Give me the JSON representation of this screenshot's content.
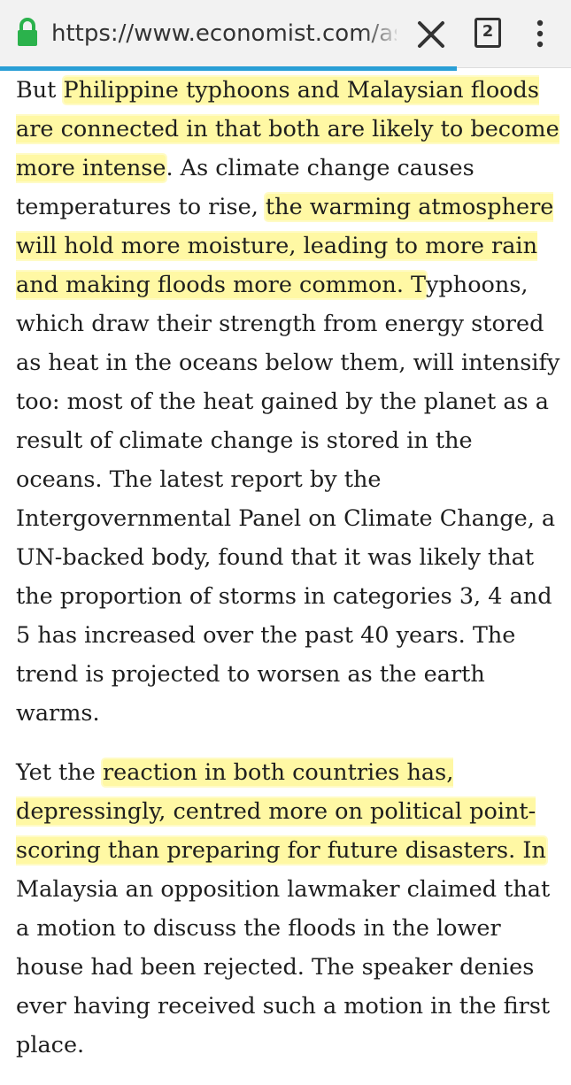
{
  "browser": {
    "url": "https://www.economist.com/asi",
    "tab_count": "2",
    "load_progress": 0.8,
    "icons": [
      "lock-icon",
      "close-icon",
      "tabs-icon",
      "menu-icon"
    ],
    "colors": {
      "lock": "#2bb24c",
      "progress": "#2a9fd6",
      "highlight": "#fff35a"
    }
  },
  "article": {
    "p1": {
      "s1": "But ",
      "h1": "Philippine typhoons and Malaysian floods are connected in that both are likely to become more intense",
      "s2": ". As climate change causes temperatures to rise, ",
      "h2": "the warming atmosphere will hold more moisture, leading to more rain and making floods more common. T",
      "s3": "yphoons, which draw their strength from energy stored as heat in the oceans below them, will intensify too: most of the heat gained by the planet as a result of climate change is stored in the oceans. The latest report by the Intergovernmental Panel on Climate Change, a UN-backed body, found that it was likely that the proportion of storms in categories 3, 4 and 5 has increased over the past 40 years. The trend is projected to worsen as the earth warms."
    },
    "p2": {
      "s1": "Yet the ",
      "h1": "reaction in both countries has, depressingly, centred more on political point-scoring than preparing for future disasters. In",
      "s2": " Malaysia an opposition lawmaker claimed that a motion to discuss the floods in the lower house had been rejected. The speaker denies ever having received such a motion in the first place."
    }
  }
}
